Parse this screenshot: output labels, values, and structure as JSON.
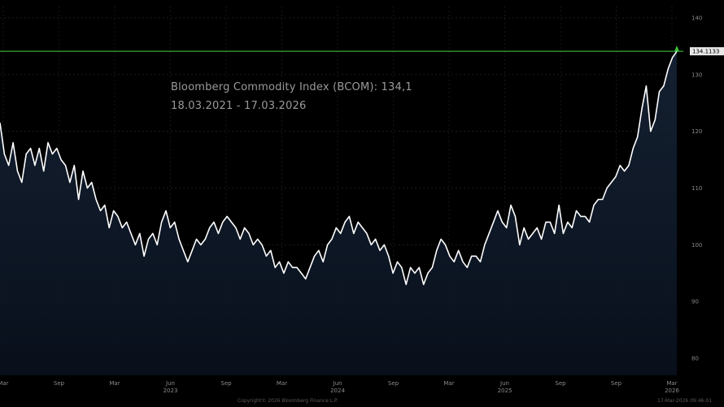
{
  "chart_data": {
    "type": "line",
    "annotation": {
      "title": "Bloomberg Commodity Index (BCOM): 134,1",
      "dates": "18.03.2021 - 17.03.2026"
    },
    "last_value_label": "134.1133",
    "last_value": 134.11,
    "reference_line": 134.11,
    "ylim": [
      77,
      142
    ],
    "yticks": [
      80,
      90,
      100,
      110,
      120,
      130,
      140
    ],
    "xticks": [
      {
        "label": "Mar",
        "sub": ""
      },
      {
        "label": "Sep",
        "sub": ""
      },
      {
        "label": "Mar",
        "sub": ""
      },
      {
        "label": "Jun",
        "sub": "2023"
      },
      {
        "label": "Sep",
        "sub": ""
      },
      {
        "label": "Mar",
        "sub": ""
      },
      {
        "label": "Jun",
        "sub": "2024"
      },
      {
        "label": "Sep",
        "sub": ""
      },
      {
        "label": "Mar",
        "sub": ""
      },
      {
        "label": "Jun",
        "sub": "2025"
      },
      {
        "label": "Sep",
        "sub": ""
      },
      {
        "label": "Sep",
        "sub": ""
      },
      {
        "label": "Mar",
        "sub": "2026"
      }
    ],
    "series": [
      {
        "values": [
          121.5,
          116,
          114,
          118,
          113,
          111,
          116,
          117,
          114,
          117,
          113,
          118,
          116,
          117,
          115,
          114,
          111,
          114,
          108,
          113,
          110,
          111,
          108,
          106,
          107,
          103,
          106,
          105,
          103,
          104,
          102,
          100,
          102,
          98,
          101,
          102,
          100,
          104,
          106,
          103,
          104,
          101,
          99,
          97,
          99,
          101,
          100,
          101,
          103,
          104,
          102,
          104,
          105,
          104,
          103,
          101,
          103,
          102,
          100,
          101,
          100,
          98,
          99,
          96,
          97,
          95,
          97,
          96,
          96,
          95,
          94,
          96,
          98,
          99,
          97,
          100,
          101,
          103,
          102,
          104,
          105,
          102,
          104,
          103,
          102,
          100,
          101,
          99,
          100,
          98,
          95,
          97,
          96,
          93,
          96,
          95,
          96,
          93,
          95,
          96,
          99,
          101,
          100,
          98,
          97,
          99,
          97,
          96,
          98,
          98,
          97,
          100,
          102,
          104,
          106,
          104,
          103,
          107,
          105,
          100,
          103,
          101,
          102,
          103,
          101,
          104,
          104,
          102,
          107,
          102,
          104,
          103,
          106,
          105,
          105,
          104,
          107,
          108,
          108,
          110,
          111,
          112,
          114,
          113,
          114,
          117,
          119,
          124,
          128,
          120,
          122,
          127,
          128,
          131,
          133,
          134.1
        ]
      }
    ]
  },
  "footer": {
    "copyright": "Copyright© 2026 Bloomberg Finance L.P.",
    "timestamp": "17-Mar-2026 09:46:01"
  }
}
